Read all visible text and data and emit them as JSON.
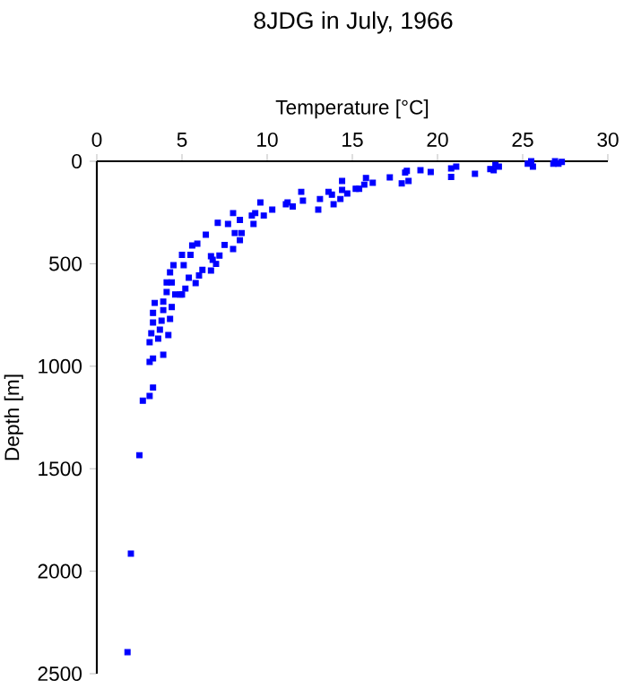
{
  "chart_data": {
    "type": "scatter",
    "title": "8JDG in July, 1966",
    "xlabel": "Temperature [°C]",
    "ylabel": "Depth [m]",
    "x": [
      14.4,
      14.4,
      14.7,
      15.2,
      14.3,
      13.9,
      13.6,
      13.1,
      13.0,
      12.1,
      12.0,
      11.5,
      11.2,
      11.1,
      10.3,
      9.8,
      9.6,
      9.3,
      9.1,
      9.2,
      8.5,
      8.4,
      8.0,
      7.7,
      8.1,
      8.4,
      8.0,
      7.5,
      7.1,
      7.2,
      6.8,
      6.7,
      7.0,
      6.7,
      6.2,
      6.4,
      5.9,
      5.6,
      5.5,
      6.0,
      5.8,
      5.4,
      5.2,
      5.0,
      4.9,
      4.6,
      4.4,
      4.1,
      4.5,
      4.3,
      5.1,
      5.0,
      4.1,
      4.4,
      3.9,
      3.4,
      3.9,
      4.3,
      3.8,
      3.3,
      3.3,
      3.7,
      4.2,
      3.6,
      3.2,
      3.1,
      3.9,
      3.3,
      3.1,
      3.3,
      3.1,
      2.7,
      2.5,
      2.0,
      1.8,
      13.8,
      15.4,
      15.7,
      15.8,
      16.2,
      17.2,
      17.9,
      18.1,
      18.3,
      18.2,
      19.0,
      19.6,
      20.8,
      21.1,
      20.8,
      22.2,
      23.1,
      23.3,
      23.4,
      23.6,
      25.3,
      25.5,
      25.6,
      26.8,
      26.9,
      27.3,
      27.1
    ],
    "values": [
      96,
      140,
      157,
      134,
      184,
      210,
      149,
      184,
      236,
      192,
      149,
      221,
      201,
      210,
      236,
      265,
      201,
      253,
      265,
      306,
      350,
      286,
      253,
      306,
      350,
      385,
      428,
      408,
      300,
      460,
      481,
      463,
      501,
      533,
      530,
      358,
      402,
      411,
      457,
      557,
      594,
      568,
      621,
      650,
      650,
      650,
      591,
      591,
      507,
      542,
      507,
      457,
      638,
      711,
      685,
      691,
      726,
      769,
      778,
      740,
      787,
      822,
      848,
      865,
      839,
      883,
      944,
      962,
      979,
      1104,
      1145,
      1168,
      1434,
      1914,
      2395,
      163,
      134,
      114,
      82,
      105,
      79,
      108,
      55,
      96,
      47,
      44,
      52,
      35,
      26,
      76,
      61,
      38,
      44,
      17,
      26,
      12,
      0,
      26,
      12,
      0,
      3,
      12
    ],
    "color": "#0000ff",
    "marker": "square",
    "xlim": [
      0,
      30
    ],
    "xticks": [
      0,
      5,
      10,
      15,
      20,
      25,
      30
    ],
    "ylim": [
      2500,
      0
    ],
    "yticks": [
      0,
      500,
      1000,
      1500,
      2000,
      2500
    ]
  }
}
